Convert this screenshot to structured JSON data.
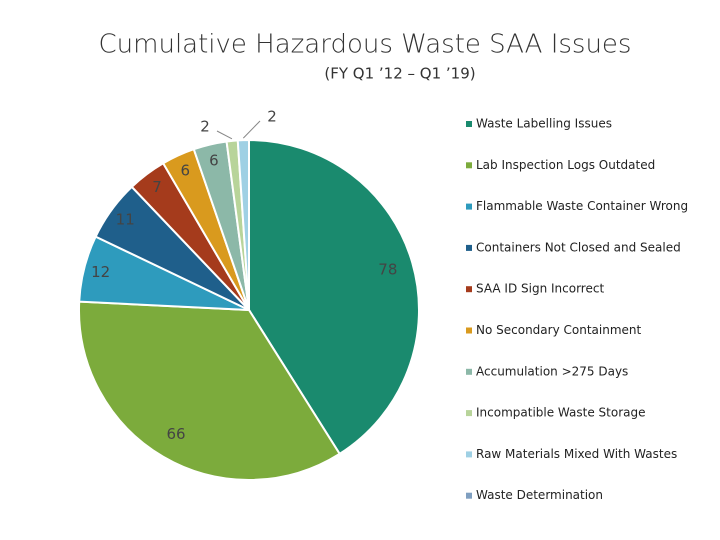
{
  "chart_data": {
    "type": "pie",
    "title": "Cumulative Hazardous Waste  SAA Issues",
    "subtitle": "(FY Q1 ’12 – Q1 ’19)",
    "categories": [
      "Waste Labelling Issues",
      "Lab Inspection Logs Outdated",
      "Flammable Waste Container Wrong",
      "Containers Not Closed and Sealed",
      "SAA ID Sign Incorrect",
      "No Secondary Containment",
      "Accumulation >275 Days",
      "Incompatible Waste Storage",
      "Raw Materials Mixed With Wastes",
      "Waste Determination"
    ],
    "values": [
      78,
      66,
      12,
      11,
      7,
      6,
      6,
      2,
      2,
      0
    ],
    "colors": [
      "#1a8a6e",
      "#7cab3c",
      "#2e9bbd",
      "#1f5f8b",
      "#a53b1c",
      "#d99a1e",
      "#8cb8a8",
      "#b8d49a",
      "#9fd0e4",
      "#7f9fc0"
    ],
    "legend": "right"
  }
}
